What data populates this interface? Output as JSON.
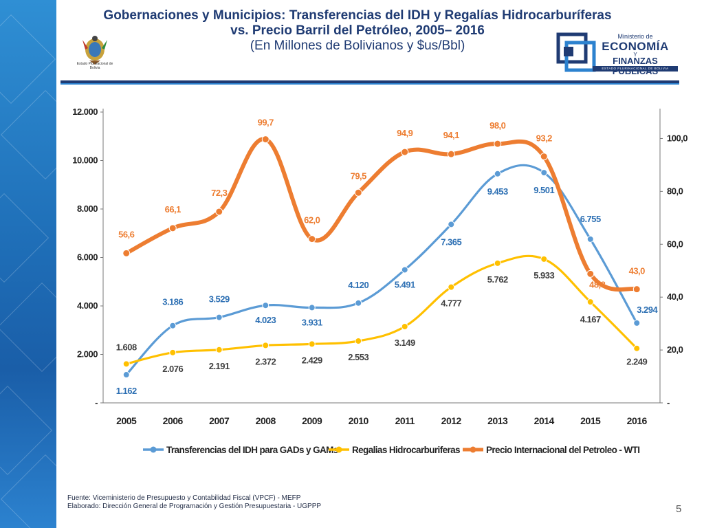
{
  "title": {
    "line1": "Gobernaciones y Municipios: Transferencias del IDH y Regalías Hidrocarburíferas",
    "line2": "vs. Precio Barril del Petróleo, 2005– 2016",
    "line3": "(En Millones de Bolivianos y $us/Bbl)"
  },
  "logos": {
    "seal_caption": "Estado Plurinacional de Bolivia",
    "ministry_top": "Ministerio de",
    "ministry_main": "ECONOMÍA",
    "ministry_y": "Y",
    "ministry_finanzas": "FINANZAS PÚBLICAS",
    "ministry_band": "ESTADO PLURINACIONAL DE BOLIVIA"
  },
  "colors": {
    "blue": "#5b9bd5",
    "yellow": "#ffc000",
    "orange": "#ed7d31",
    "navy": "#1f3b73"
  },
  "chart_data": {
    "type": "line",
    "categories": [
      "2005",
      "2006",
      "2007",
      "2008",
      "2009",
      "2010",
      "2011",
      "2012",
      "2013",
      "2014",
      "2015",
      "2016"
    ],
    "left_axis": {
      "ylim": [
        0,
        12000
      ],
      "ticks": [
        "-",
        "2.000",
        "4.000",
        "6.000",
        "8.000",
        "10.000",
        "12.000"
      ],
      "tick_values": [
        0,
        2000,
        4000,
        6000,
        8000,
        10000,
        12000
      ]
    },
    "right_axis": {
      "ylim": [
        0,
        110
      ],
      "ticks": [
        "-",
        "20,0",
        "40,0",
        "60,0",
        "80,0",
        "100,0"
      ],
      "tick_values": [
        0,
        20,
        40,
        60,
        80,
        100
      ]
    },
    "series": [
      {
        "name": "Transferencias del IDH para GADs y GAMs",
        "axis": "left",
        "color": "#5b9bd5",
        "values": [
          1162,
          3186,
          3529,
          4023,
          3931,
          4120,
          5491,
          7365,
          9453,
          9501,
          6755,
          3294
        ],
        "labels": [
          "1.162",
          "3.186",
          "3.529",
          "4.023",
          "3.931",
          "4.120",
          "5.491",
          "7.365",
          "9.453",
          "9.501",
          "6.755",
          "3.294"
        ]
      },
      {
        "name": "Regalias Hidrocarburiferas",
        "axis": "left",
        "color": "#ffc000",
        "values": [
          1608,
          2076,
          2191,
          2372,
          2429,
          2553,
          3149,
          4777,
          5762,
          5933,
          4167,
          2249
        ],
        "labels": [
          "1.608",
          "2.076",
          "2.191",
          "2.372",
          "2.429",
          "2.553",
          "3.149",
          "4.777",
          "5.762",
          "5.933",
          "4.167",
          "2.249"
        ]
      },
      {
        "name": "Precio Internacional del Petroleo - WTI",
        "axis": "right",
        "color": "#ed7d31",
        "values": [
          56.6,
          66.1,
          72.3,
          99.7,
          62.0,
          79.5,
          94.9,
          94.1,
          98.0,
          93.2,
          48.8,
          43.0
        ],
        "labels": [
          "56,6",
          "66,1",
          "72,3",
          "99,7",
          "62,0",
          "79,5",
          "94,9",
          "94,1",
          "98,0",
          "93,2",
          "48,8",
          "43,0"
        ]
      }
    ],
    "legend_position": "bottom"
  },
  "footer": {
    "source": "Fuente: Viceministerio de Presupuesto y Contabilidad Fiscal (VPCF) - MEFP",
    "prepared": "Elaborado: Dirección General de Programación y Gestión Presupuestaria - UGPPP"
  },
  "page_number": "5"
}
